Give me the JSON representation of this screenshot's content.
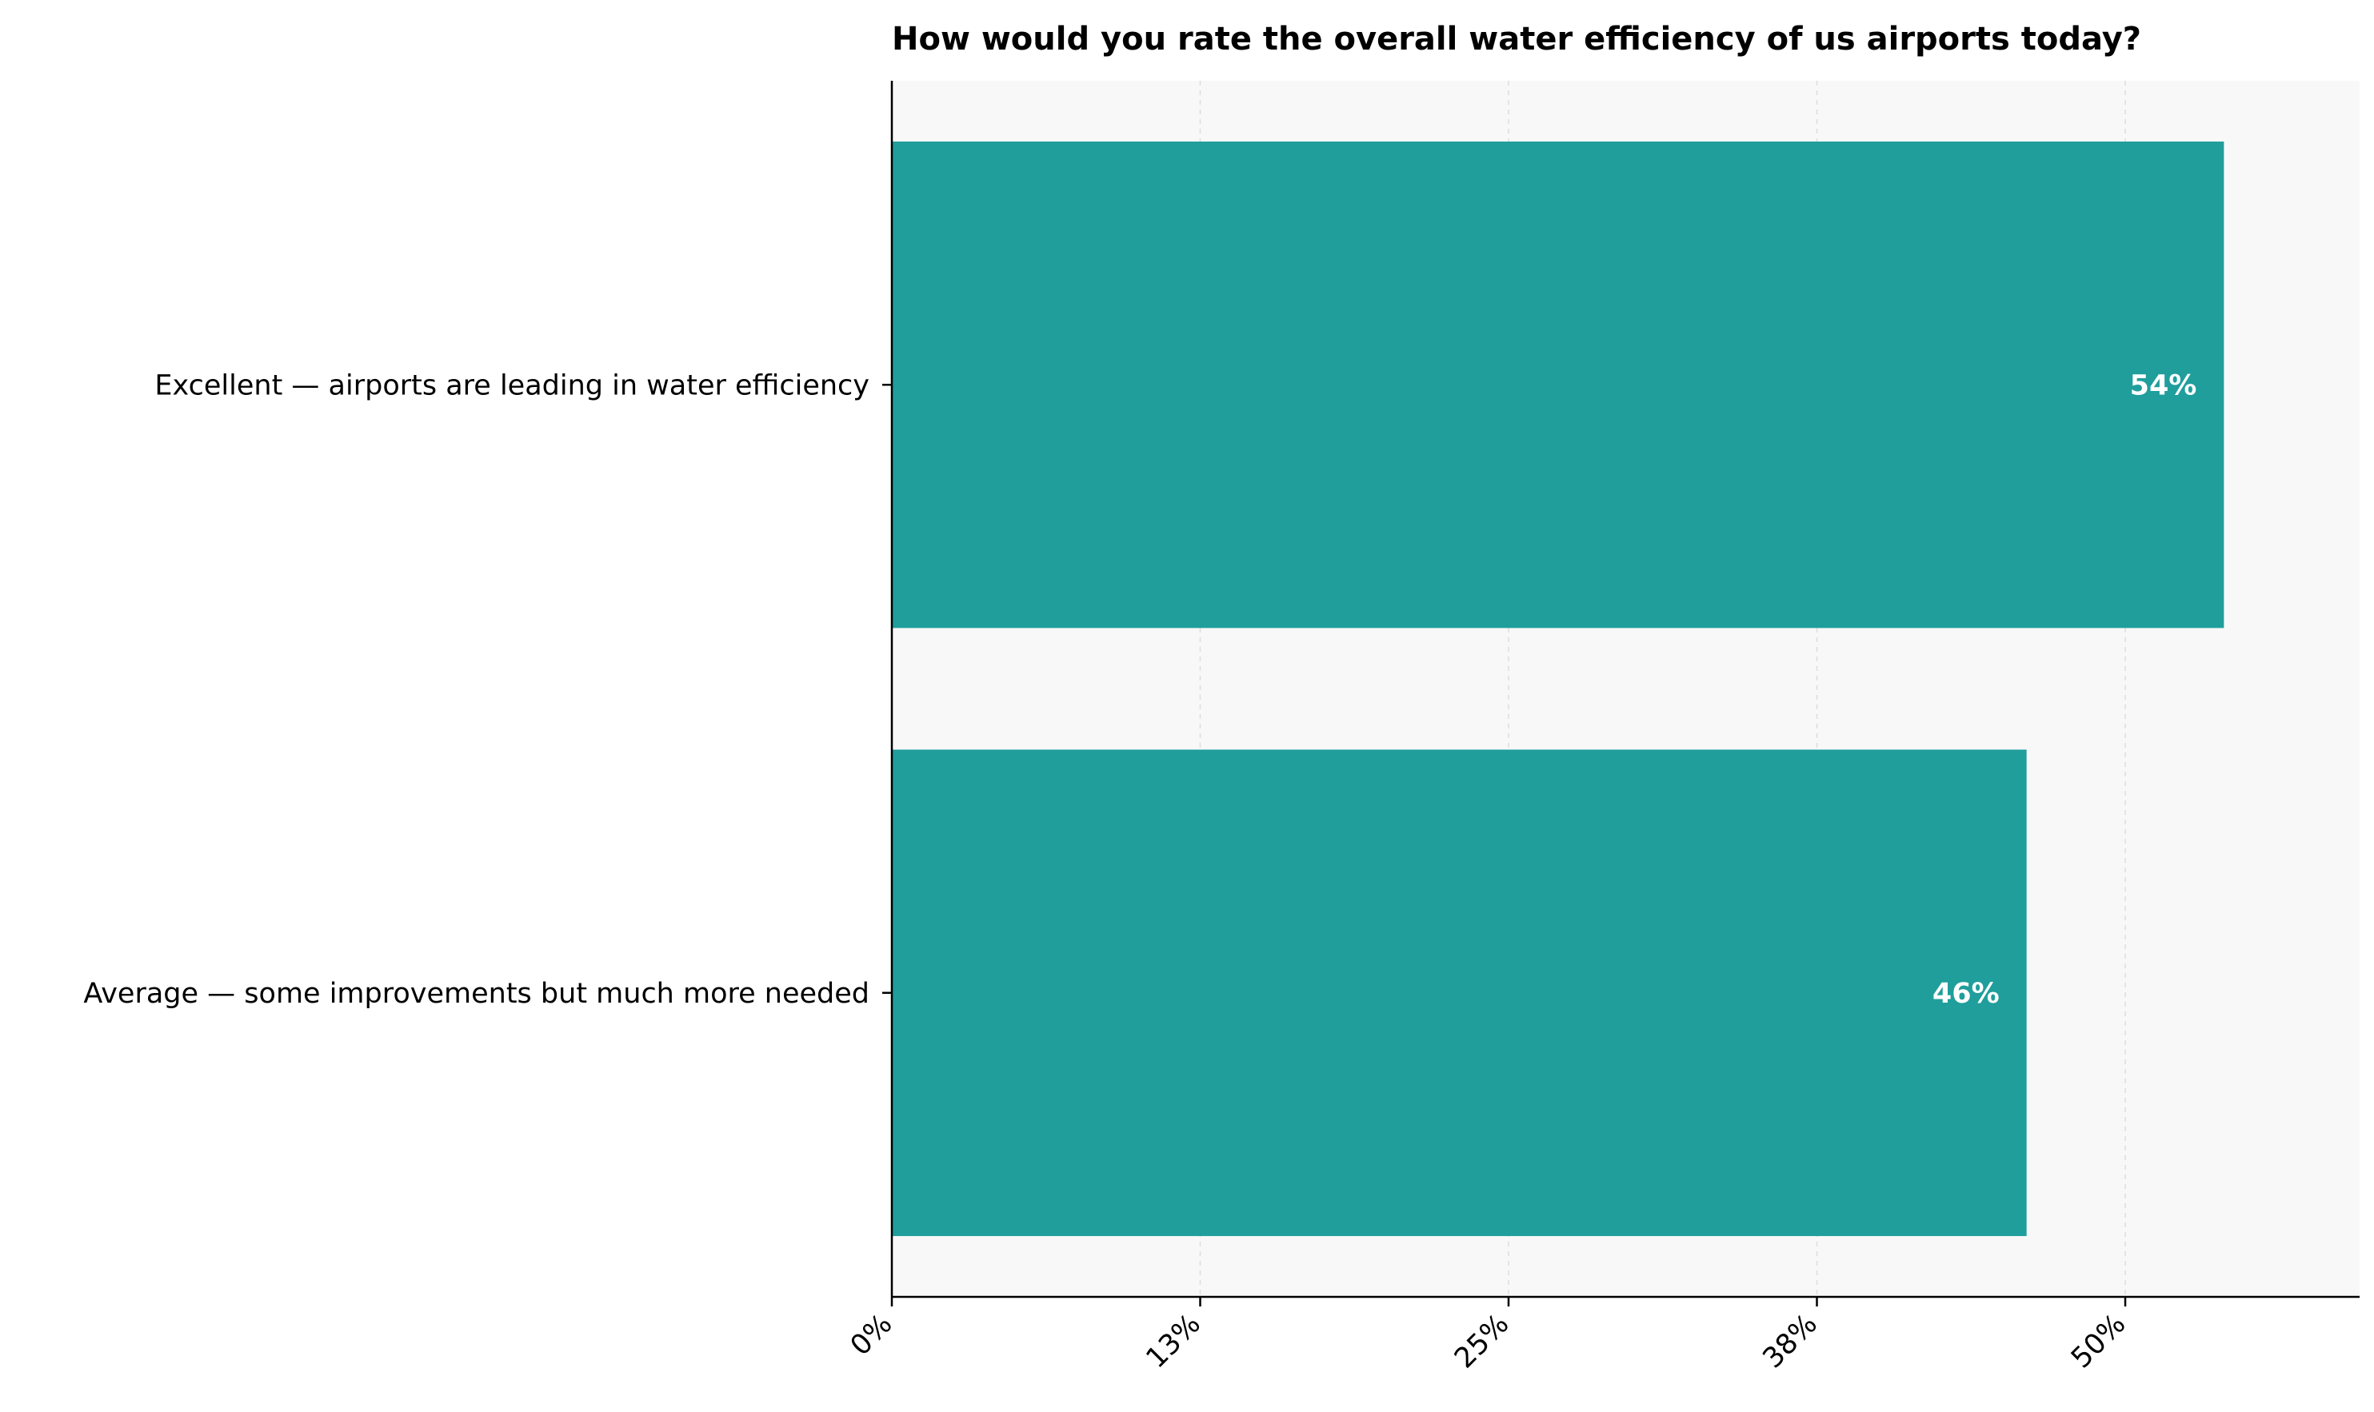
{
  "chart_data": {
    "type": "bar",
    "orientation": "horizontal",
    "title": "How would you rate the overall water efficiency of us airports today?",
    "categories": [
      "Excellent — airports are leading in water efficiency",
      "Average — some improvements but much more needed"
    ],
    "values": [
      54,
      46
    ],
    "value_labels": [
      "54%",
      "46%"
    ],
    "xlim": [
      0,
      59.5
    ],
    "x_ticks": [
      0,
      12.5,
      25,
      37.5,
      50
    ],
    "x_tick_labels": [
      "0%",
      "13%",
      "25%",
      "38%",
      "50%"
    ],
    "xlabel": "",
    "ylabel": "",
    "grid": "vertical dashed",
    "legend": "none",
    "colors": {
      "bar": "#1f9e9c",
      "plot_background": "#f8f8f8",
      "grid": "#dddddd",
      "axis": "#000000",
      "value_label": "#ffffff"
    }
  }
}
